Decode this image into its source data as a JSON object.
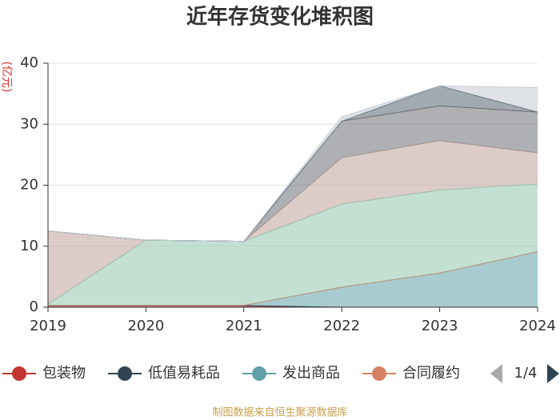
{
  "chart_data": {
    "type": "stacked_area",
    "title": "近年存货变化堆积图",
    "y_label": "(亿元)",
    "categories": [
      "2019",
      "2020",
      "2021",
      "2022",
      "2023",
      "2024"
    ],
    "series": [
      {
        "name": "包装物",
        "color": "#c23531",
        "values": [
          0.2,
          0.2,
          0.2,
          0,
          0,
          0
        ]
      },
      {
        "name": "低值易耗品",
        "color": "#2f4554",
        "values": [
          0.1,
          0.1,
          0.1,
          0,
          0,
          0
        ]
      },
      {
        "name": "发出商品",
        "color": "#61a0a8",
        "values": [
          0,
          0,
          0,
          3.3,
          5.6,
          9.1
        ]
      },
      {
        "name": "合同履约",
        "color": "#d48265",
        "values": [
          0,
          0,
          0,
          0,
          0,
          0
        ]
      },
      {
        "color": "#91c7ae",
        "values": [
          0.2,
          10.7,
          10.5,
          13.6,
          13.6,
          11.1
        ]
      },
      {
        "color": "#bda29a",
        "values": [
          12.0,
          0,
          0,
          7.6,
          8.1,
          5.1
        ]
      },
      {
        "color": "#6e7074",
        "values": [
          0,
          0,
          0,
          6.0,
          5.7,
          6.7
        ]
      },
      {
        "color": "#546570",
        "values": [
          0,
          0,
          0,
          0,
          3.3,
          0
        ]
      },
      {
        "color": "#c4ccd3",
        "values": [
          0,
          0,
          0,
          0.7,
          0,
          4.0
        ]
      }
    ],
    "ylim": [
      0,
      40
    ],
    "yticks": [
      0,
      10,
      20,
      30,
      40
    ],
    "grid": true,
    "legend_page": "1/4",
    "source": "制图数据来自恒生聚源数据库"
  }
}
